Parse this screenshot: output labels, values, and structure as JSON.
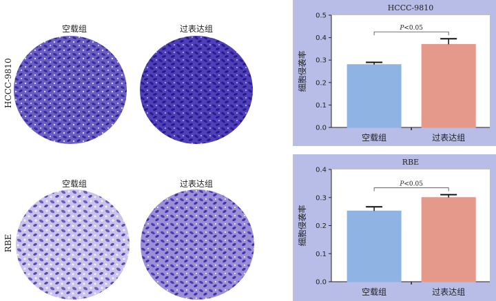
{
  "micrographs": {
    "rows": [
      {
        "label": "HCCC-9810",
        "columns": [
          "空载组",
          "过表达组"
        ]
      },
      {
        "label": "RBE",
        "columns": [
          "空载组",
          "过表达组"
        ]
      }
    ],
    "stain_color": "#4b39b5"
  },
  "chart_data": [
    {
      "type": "bar",
      "title": "HCCC-9810",
      "categories": [
        "空载组",
        "过表达组"
      ],
      "values": [
        0.28,
        0.37
      ],
      "errors": [
        0.01,
        0.025
      ],
      "colors": [
        "#8fb4e3",
        "#e4998b"
      ],
      "ylabel": "细胞侵袭率",
      "ylim": [
        0,
        0.5
      ],
      "yticks": [
        "0.0",
        "0.1",
        "0.2",
        "0.3",
        "0.4",
        "0.5"
      ],
      "annotation": "P<0.05"
    },
    {
      "type": "bar",
      "title": "RBE",
      "categories": [
        "空载组",
        "过表达组"
      ],
      "values": [
        0.252,
        0.3
      ],
      "errors": [
        0.015,
        0.01
      ],
      "colors": [
        "#8fb4e3",
        "#e4998b"
      ],
      "ylabel": "细胞侵袭率",
      "ylim": [
        0,
        0.4
      ],
      "yticks": [
        "0.0",
        "0.1",
        "0.2",
        "0.3",
        "0.4"
      ],
      "annotation": "P<0.05"
    }
  ]
}
